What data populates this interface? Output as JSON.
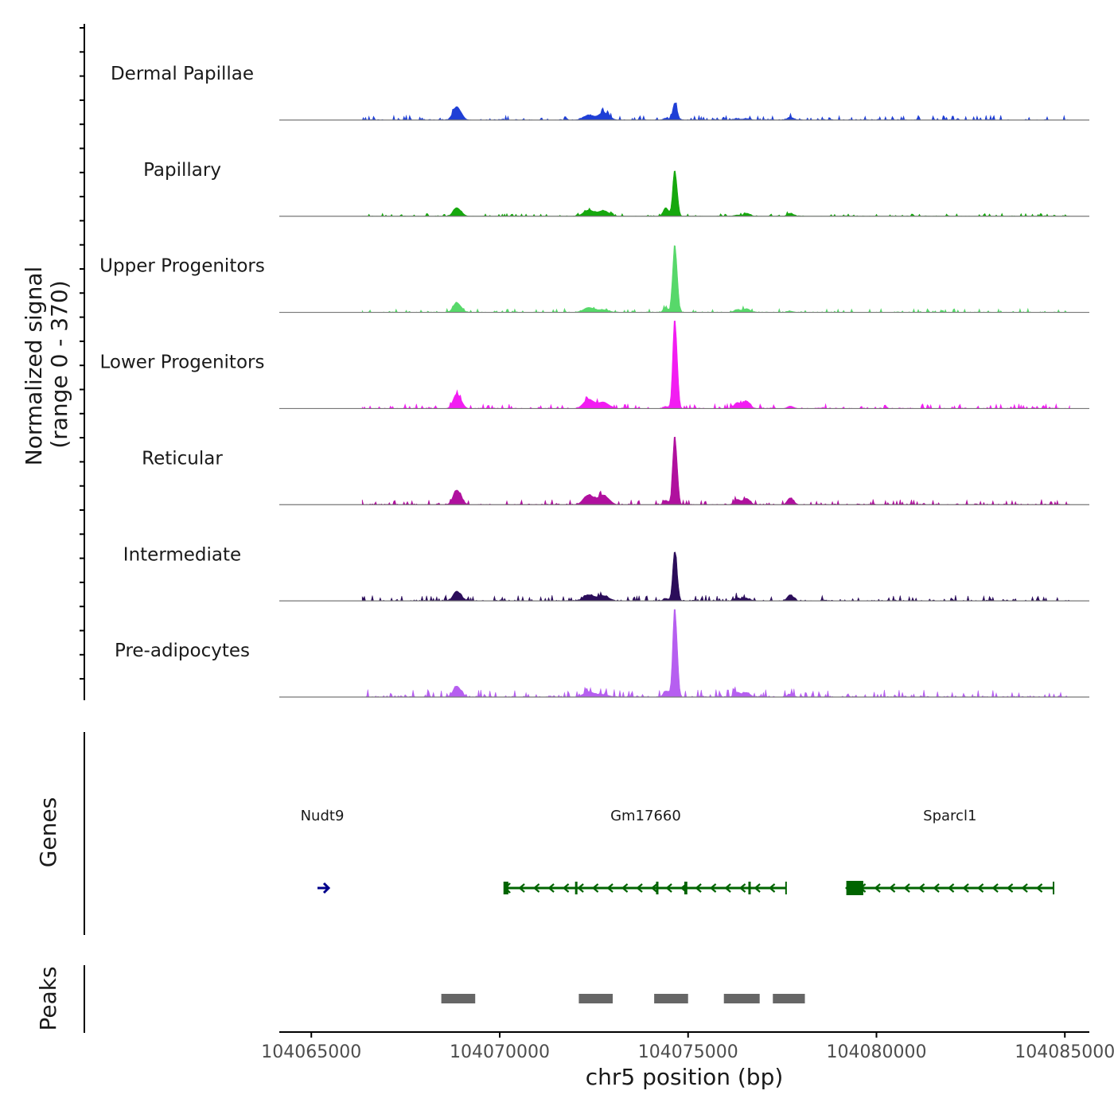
{
  "chart_data": {
    "type": "area",
    "title": "",
    "ylabel": "Normalized signal",
    "ylabel_range": "(range 0 - 370)",
    "ylim": [
      0,
      370
    ],
    "xlabel": "chr5 position (bp)",
    "xlim": [
      104064150,
      104085650
    ],
    "x_ticks": [
      104065000,
      104070000,
      104075000,
      104080000,
      104085000
    ],
    "x_tick_labels": [
      "104065000",
      "104070000",
      "104075000",
      "104080000",
      "104085000"
    ],
    "baseline_color": "#777777",
    "base_peaks": [
      {
        "pos": 104068850,
        "width": 90,
        "h": [
          55,
          35,
          40,
          60,
          60,
          40,
          45
        ]
      },
      {
        "pos": 104072350,
        "width": 130,
        "h": [
          20,
          25,
          20,
          38,
          40,
          25,
          22
        ]
      },
      {
        "pos": 104072750,
        "width": 110,
        "h": [
          30,
          22,
          10,
          25,
          38,
          20,
          10
        ]
      },
      {
        "pos": 104074400,
        "width": 60,
        "h": [
          8,
          35,
          18,
          8,
          18,
          10,
          25
        ]
      },
      {
        "pos": 104074640,
        "width": 50,
        "h": [
          70,
          190,
          280,
          370,
          285,
          205,
          370
        ]
      },
      {
        "pos": 104076300,
        "width": 80,
        "h": [
          5,
          5,
          12,
          25,
          22,
          12,
          20
        ]
      },
      {
        "pos": 104076550,
        "width": 70,
        "h": [
          6,
          12,
          15,
          30,
          25,
          10,
          18
        ]
      },
      {
        "pos": 104077700,
        "width": 70,
        "h": [
          12,
          12,
          5,
          10,
          28,
          25,
          12
        ]
      }
    ],
    "series": [
      {
        "name": "Dermal Papillae",
        "color": "#1f3fd6",
        "noise": 2.5,
        "seed": 3
      },
      {
        "name": "Papillary",
        "color": "#16a80e",
        "noise": 1.5,
        "seed": 7
      },
      {
        "name": "Upper Progenitors",
        "color": "#57d86a",
        "noise": 2.0,
        "seed": 11
      },
      {
        "name": "Lower Progenitors",
        "color": "#f21df2",
        "noise": 2.5,
        "seed": 17
      },
      {
        "name": "Reticular",
        "color": "#b0109e",
        "noise": 3.0,
        "seed": 23
      },
      {
        "name": "Intermediate",
        "color": "#2b0d5a",
        "noise": 3.0,
        "seed": 29
      },
      {
        "name": "Pre-adipocytes",
        "color": "#b65ff0",
        "noise": 4.0,
        "seed": 31
      }
    ],
    "genes_label": "Genes",
    "genes": [
      {
        "name": "Nudt9",
        "start": 104065000,
        "end": 104065500,
        "strand": "+",
        "color": "#00008b",
        "exons": []
      },
      {
        "name": "Gm17660",
        "start": 104070150,
        "end": 104077600,
        "strand": "-",
        "color": "#006400",
        "exons": [
          [
            104070100,
            104070230
          ],
          [
            104072000,
            104072030
          ],
          [
            104074150,
            104074180
          ],
          [
            104074900,
            104074980
          ],
          [
            104076600,
            104076650
          ]
        ]
      },
      {
        "name": "Sparcl1",
        "start": 104079200,
        "end": 104084700,
        "strand": "-",
        "color": "#006400",
        "exons": [
          [
            104079200,
            104079650
          ]
        ]
      }
    ],
    "peaks_label": "Peaks",
    "peak_color": "#666666",
    "peaks": [
      [
        104068450,
        104069350
      ],
      [
        104072100,
        104073000
      ],
      [
        104074100,
        104075000
      ],
      [
        104075950,
        104076900
      ],
      [
        104077250,
        104078100
      ]
    ]
  }
}
